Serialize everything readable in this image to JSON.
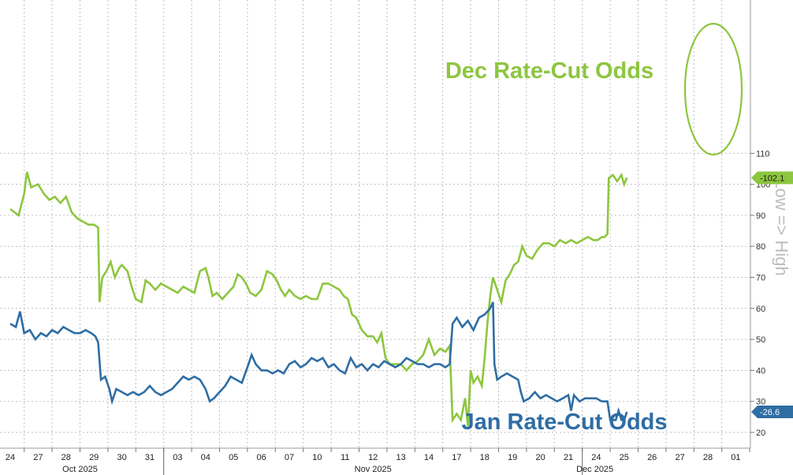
{
  "chart_data": {
    "type": "line",
    "ylabel": "Low => High",
    "ylim": [
      17,
      112
    ],
    "yticks": [
      20,
      30,
      40,
      50,
      60,
      70,
      80,
      90,
      100,
      110
    ],
    "grid": true,
    "x_day_labels": [
      "24",
      "27",
      "28",
      "29",
      "30",
      "31",
      "03",
      "04",
      "05",
      "06",
      "07",
      "10",
      "11",
      "12",
      "13",
      "14",
      "17",
      "18",
      "19",
      "20",
      "21",
      "24",
      "25",
      "26",
      "27",
      "28",
      "01"
    ],
    "month_labels": [
      "Oct 2025",
      "Nov 2025",
      "Dec 2025"
    ],
    "series": [
      {
        "name": "Dec Rate-Cut Odds",
        "color": "#8dc63f",
        "last_value": "102.1",
        "points": [
          [
            0,
            92
          ],
          [
            0.3,
            90
          ],
          [
            0.5,
            97
          ],
          [
            0.6,
            104
          ],
          [
            0.75,
            99
          ],
          [
            1.0,
            100
          ],
          [
            1.2,
            97
          ],
          [
            1.4,
            95
          ],
          [
            1.6,
            96
          ],
          [
            1.8,
            94
          ],
          [
            2.0,
            96
          ],
          [
            2.2,
            91
          ],
          [
            2.4,
            89
          ],
          [
            2.6,
            88
          ],
          [
            2.8,
            87
          ],
          [
            3.0,
            87
          ],
          [
            3.15,
            86
          ],
          [
            3.2,
            62
          ],
          [
            3.3,
            70
          ],
          [
            3.45,
            72
          ],
          [
            3.6,
            75
          ],
          [
            3.75,
            70
          ],
          [
            3.9,
            73
          ],
          [
            4.0,
            74
          ],
          [
            4.2,
            72
          ],
          [
            4.35,
            67
          ],
          [
            4.5,
            63
          ],
          [
            4.7,
            62
          ],
          [
            4.85,
            69
          ],
          [
            5.0,
            68
          ],
          [
            5.2,
            66
          ],
          [
            5.4,
            68
          ],
          [
            5.6,
            67
          ],
          [
            5.8,
            66
          ],
          [
            6.0,
            65
          ],
          [
            6.2,
            67
          ],
          [
            6.4,
            66
          ],
          [
            6.6,
            65
          ],
          [
            6.8,
            72
          ],
          [
            7.0,
            73
          ],
          [
            7.1,
            70
          ],
          [
            7.25,
            64
          ],
          [
            7.4,
            65
          ],
          [
            7.6,
            63
          ],
          [
            7.8,
            65
          ],
          [
            8.0,
            67
          ],
          [
            8.15,
            71
          ],
          [
            8.3,
            70
          ],
          [
            8.45,
            68
          ],
          [
            8.6,
            65
          ],
          [
            8.8,
            64
          ],
          [
            9.0,
            66
          ],
          [
            9.2,
            72
          ],
          [
            9.4,
            71
          ],
          [
            9.55,
            69
          ],
          [
            9.7,
            66
          ],
          [
            9.85,
            64
          ],
          [
            10.0,
            66
          ],
          [
            10.2,
            64
          ],
          [
            10.4,
            63
          ],
          [
            10.6,
            64
          ],
          [
            10.8,
            63
          ],
          [
            11.0,
            63
          ],
          [
            11.2,
            68
          ],
          [
            11.4,
            68
          ],
          [
            11.6,
            67
          ],
          [
            11.8,
            66
          ],
          [
            11.95,
            64
          ],
          [
            12.1,
            63
          ],
          [
            12.25,
            58
          ],
          [
            12.4,
            57
          ],
          [
            12.6,
            53
          ],
          [
            12.8,
            51
          ],
          [
            13.0,
            51
          ],
          [
            13.15,
            49
          ],
          [
            13.3,
            52
          ],
          [
            13.45,
            44
          ],
          [
            13.6,
            42
          ],
          [
            13.8,
            42
          ],
          [
            14.0,
            42
          ],
          [
            14.2,
            40
          ],
          [
            14.4,
            42
          ],
          [
            14.6,
            43
          ],
          [
            14.8,
            45
          ],
          [
            15.0,
            50
          ],
          [
            15.2,
            45
          ],
          [
            15.4,
            47
          ],
          [
            15.6,
            46
          ],
          [
            15.75,
            48
          ],
          [
            15.85,
            24
          ],
          [
            16.0,
            26
          ],
          [
            16.15,
            24
          ],
          [
            16.3,
            31
          ],
          [
            16.4,
            22
          ],
          [
            16.5,
            40
          ],
          [
            16.6,
            36
          ],
          [
            16.75,
            38
          ],
          [
            16.9,
            35
          ],
          [
            17.0,
            44
          ],
          [
            17.1,
            55
          ],
          [
            17.2,
            64
          ],
          [
            17.3,
            70
          ],
          [
            17.45,
            66
          ],
          [
            17.6,
            62
          ],
          [
            17.75,
            69
          ],
          [
            17.9,
            71
          ],
          [
            18.05,
            74
          ],
          [
            18.2,
            75
          ],
          [
            18.35,
            80
          ],
          [
            18.5,
            77
          ],
          [
            18.7,
            76
          ],
          [
            18.9,
            79
          ],
          [
            19.1,
            81
          ],
          [
            19.3,
            81
          ],
          [
            19.5,
            80
          ],
          [
            19.7,
            82
          ],
          [
            19.9,
            81
          ],
          [
            20.1,
            82
          ],
          [
            20.3,
            81
          ],
          [
            20.5,
            82
          ],
          [
            20.7,
            83
          ],
          [
            20.9,
            82
          ],
          [
            21.05,
            82
          ],
          [
            21.2,
            83
          ],
          [
            21.3,
            83
          ],
          [
            21.4,
            84
          ],
          [
            21.45,
            102
          ],
          [
            21.6,
            103
          ],
          [
            21.75,
            101
          ],
          [
            21.9,
            103
          ],
          [
            22.0,
            100
          ],
          [
            22.1,
            102.1
          ]
        ]
      },
      {
        "name": "Jan Rate-Cut Odds",
        "color": "#2e6da4",
        "last_value": "26.6",
        "points": [
          [
            0,
            55
          ],
          [
            0.2,
            54
          ],
          [
            0.35,
            59
          ],
          [
            0.5,
            52
          ],
          [
            0.7,
            53
          ],
          [
            0.9,
            50
          ],
          [
            1.1,
            52
          ],
          [
            1.3,
            51
          ],
          [
            1.5,
            53
          ],
          [
            1.7,
            52
          ],
          [
            1.9,
            54
          ],
          [
            2.1,
            53
          ],
          [
            2.3,
            52
          ],
          [
            2.5,
            52
          ],
          [
            2.7,
            53
          ],
          [
            2.9,
            52
          ],
          [
            3.05,
            51
          ],
          [
            3.15,
            49
          ],
          [
            3.25,
            37
          ],
          [
            3.4,
            38
          ],
          [
            3.55,
            34
          ],
          [
            3.65,
            30
          ],
          [
            3.8,
            34
          ],
          [
            4.0,
            33
          ],
          [
            4.2,
            32
          ],
          [
            4.4,
            33
          ],
          [
            4.6,
            32
          ],
          [
            4.8,
            33
          ],
          [
            5.0,
            35
          ],
          [
            5.2,
            33
          ],
          [
            5.4,
            32
          ],
          [
            5.6,
            33
          ],
          [
            5.8,
            34
          ],
          [
            6.0,
            36
          ],
          [
            6.2,
            38
          ],
          [
            6.4,
            37
          ],
          [
            6.6,
            38
          ],
          [
            6.8,
            37
          ],
          [
            7.0,
            34
          ],
          [
            7.15,
            30
          ],
          [
            7.3,
            31
          ],
          [
            7.5,
            33
          ],
          [
            7.7,
            35
          ],
          [
            7.9,
            38
          ],
          [
            8.1,
            37
          ],
          [
            8.3,
            36
          ],
          [
            8.5,
            41
          ],
          [
            8.65,
            45
          ],
          [
            8.8,
            42
          ],
          [
            9.0,
            40
          ],
          [
            9.2,
            40
          ],
          [
            9.4,
            39
          ],
          [
            9.6,
            40
          ],
          [
            9.8,
            39
          ],
          [
            10.0,
            42
          ],
          [
            10.2,
            43
          ],
          [
            10.4,
            41
          ],
          [
            10.6,
            42
          ],
          [
            10.8,
            44
          ],
          [
            11.0,
            43
          ],
          [
            11.2,
            44
          ],
          [
            11.4,
            41
          ],
          [
            11.6,
            42
          ],
          [
            11.8,
            40
          ],
          [
            12.0,
            39
          ],
          [
            12.2,
            44
          ],
          [
            12.4,
            41
          ],
          [
            12.6,
            42
          ],
          [
            12.8,
            40
          ],
          [
            13.0,
            42
          ],
          [
            13.2,
            41
          ],
          [
            13.4,
            43
          ],
          [
            13.6,
            42
          ],
          [
            13.8,
            41
          ],
          [
            14.0,
            42
          ],
          [
            14.2,
            44
          ],
          [
            14.4,
            43
          ],
          [
            14.6,
            42
          ],
          [
            14.8,
            42
          ],
          [
            15.0,
            41
          ],
          [
            15.2,
            42
          ],
          [
            15.4,
            42
          ],
          [
            15.6,
            41
          ],
          [
            15.75,
            42
          ],
          [
            15.85,
            55
          ],
          [
            16.0,
            57
          ],
          [
            16.2,
            54
          ],
          [
            16.4,
            56
          ],
          [
            16.6,
            53
          ],
          [
            16.8,
            57
          ],
          [
            17.0,
            58
          ],
          [
            17.2,
            60
          ],
          [
            17.3,
            62
          ],
          [
            17.35,
            42
          ],
          [
            17.45,
            37
          ],
          [
            17.6,
            38
          ],
          [
            17.8,
            39
          ],
          [
            18.0,
            38
          ],
          [
            18.2,
            37
          ],
          [
            18.3,
            33
          ],
          [
            18.4,
            30
          ],
          [
            18.6,
            31
          ],
          [
            18.8,
            33
          ],
          [
            19.0,
            31
          ],
          [
            19.2,
            32
          ],
          [
            19.4,
            31
          ],
          [
            19.6,
            30
          ],
          [
            19.8,
            31
          ],
          [
            20.0,
            32
          ],
          [
            20.1,
            27
          ],
          [
            20.2,
            32
          ],
          [
            20.4,
            30
          ],
          [
            20.6,
            31
          ],
          [
            20.8,
            31
          ],
          [
            21.0,
            31
          ],
          [
            21.2,
            30
          ],
          [
            21.4,
            30
          ],
          [
            21.5,
            24
          ],
          [
            21.7,
            24
          ],
          [
            21.8,
            27
          ],
          [
            21.9,
            24
          ],
          [
            22.0,
            24
          ],
          [
            22.1,
            26.6
          ]
        ]
      }
    ],
    "annotations": [
      "ellipse-around-december-jump"
    ]
  }
}
